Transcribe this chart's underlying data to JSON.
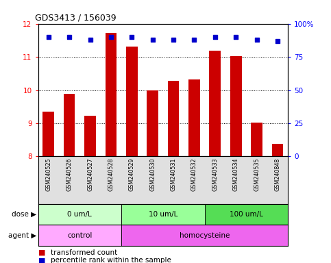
{
  "title": "GDS3413 / 156039",
  "samples": [
    "GSM240525",
    "GSM240526",
    "GSM240527",
    "GSM240528",
    "GSM240529",
    "GSM240530",
    "GSM240531",
    "GSM240532",
    "GSM240533",
    "GSM240534",
    "GSM240535",
    "GSM240848"
  ],
  "bar_values": [
    9.35,
    9.88,
    9.22,
    11.72,
    11.32,
    9.99,
    10.28,
    10.32,
    11.18,
    11.03,
    9.03,
    8.38
  ],
  "percentile_values": [
    90,
    90,
    88,
    90,
    90,
    88,
    88,
    88,
    90,
    90,
    88,
    87
  ],
  "bar_color": "#cc0000",
  "percentile_color": "#0000cc",
  "ylim_left": [
    8,
    12
  ],
  "ylim_right": [
    0,
    100
  ],
  "yticks_left": [
    8,
    9,
    10,
    11,
    12
  ],
  "yticks_right": [
    0,
    25,
    50,
    75,
    100
  ],
  "ytick_labels_right": [
    "0",
    "25",
    "50",
    "75",
    "100%"
  ],
  "dose_groups": [
    {
      "label": "0 um/L",
      "start": 0,
      "end": 4,
      "color": "#ccffcc"
    },
    {
      "label": "10 um/L",
      "start": 4,
      "end": 8,
      "color": "#99ff99"
    },
    {
      "label": "100 um/L",
      "start": 8,
      "end": 12,
      "color": "#55dd55"
    }
  ],
  "agent_groups": [
    {
      "label": "control",
      "start": 0,
      "end": 4,
      "color": "#ffaaff"
    },
    {
      "label": "homocysteine",
      "start": 4,
      "end": 12,
      "color": "#ee66ee"
    }
  ],
  "dose_label": "dose",
  "agent_label": "agent",
  "legend_red": "transformed count",
  "legend_blue": "percentile rank within the sample",
  "bar_width": 0.55
}
